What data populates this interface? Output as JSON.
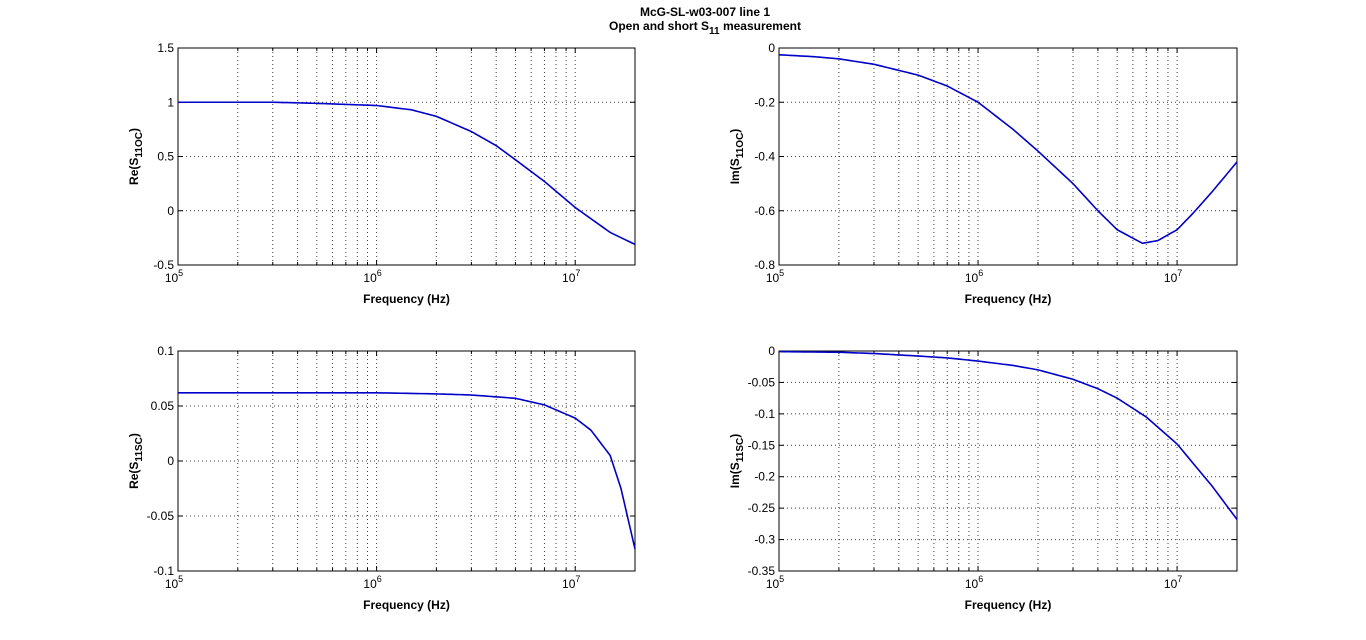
{
  "figure": {
    "title_line1": "McG-SL-w03-007 line 1",
    "title_line2_prefix": "Open and short S",
    "title_line2_sub": "11",
    "title_line2_suffix": " measurement"
  },
  "colors": {
    "line": "#0000c8",
    "axis": "#000000",
    "background": "#ffffff"
  },
  "chart_data": [
    {
      "type": "line",
      "xlabel": "Frequency (Hz)",
      "ylabel_prefix": "Re(S",
      "ylabel_sub": "11OC",
      "ylabel_suffix": ")",
      "xscale": "log",
      "xlim": [
        100000,
        20000000
      ],
      "ylim": [
        -0.5,
        1.5
      ],
      "xticks": [
        {
          "base": "10",
          "exp": "5",
          "value": 100000
        },
        {
          "base": "10",
          "exp": "6",
          "value": 1000000
        },
        {
          "base": "10",
          "exp": "7",
          "value": 10000000
        }
      ],
      "yticks": [
        {
          "value": -0.5,
          "label": "-0.5"
        },
        {
          "value": 0,
          "label": "0"
        },
        {
          "value": 0.5,
          "label": "0.5"
        },
        {
          "value": 1,
          "label": "1"
        },
        {
          "value": 1.5,
          "label": "1.5"
        }
      ],
      "grid": true,
      "series": [
        {
          "x": [
            100000,
            200000,
            300000,
            500000,
            700000,
            1000000,
            1500000,
            2000000,
            3000000,
            4000000,
            5000000,
            7000000,
            10000000,
            15000000,
            20000000
          ],
          "y": [
            1.0,
            1.0,
            1.0,
            0.99,
            0.98,
            0.97,
            0.93,
            0.87,
            0.73,
            0.6,
            0.47,
            0.27,
            0.03,
            -0.2,
            -0.31
          ]
        }
      ]
    },
    {
      "type": "line",
      "xlabel": "Frequency (Hz)",
      "ylabel_prefix": "Im(S",
      "ylabel_sub": "11OC",
      "ylabel_suffix": ")",
      "xscale": "log",
      "xlim": [
        100000,
        20000000
      ],
      "ylim": [
        -0.8,
        0
      ],
      "xticks": [
        {
          "base": "10",
          "exp": "5",
          "value": 100000
        },
        {
          "base": "10",
          "exp": "6",
          "value": 1000000
        },
        {
          "base": "10",
          "exp": "7",
          "value": 10000000
        }
      ],
      "yticks": [
        {
          "value": -0.8,
          "label": "-0.8"
        },
        {
          "value": -0.6,
          "label": "-0.6"
        },
        {
          "value": -0.4,
          "label": "-0.4"
        },
        {
          "value": -0.2,
          "label": "-0.2"
        },
        {
          "value": 0,
          "label": "0"
        }
      ],
      "grid": true,
      "series": [
        {
          "x": [
            100000,
            150000,
            200000,
            300000,
            500000,
            700000,
            1000000,
            1500000,
            2000000,
            3000000,
            4000000,
            5000000,
            6700000,
            8000000,
            10000000,
            12000000,
            15000000,
            20000000
          ],
          "y": [
            -0.025,
            -0.032,
            -0.04,
            -0.06,
            -0.1,
            -0.14,
            -0.2,
            -0.3,
            -0.38,
            -0.5,
            -0.6,
            -0.67,
            -0.72,
            -0.71,
            -0.67,
            -0.61,
            -0.53,
            -0.42
          ]
        }
      ]
    },
    {
      "type": "line",
      "xlabel": "Frequency (Hz)",
      "ylabel_prefix": "Re(S",
      "ylabel_sub": "11SC",
      "ylabel_suffix": ")",
      "xscale": "log",
      "xlim": [
        100000,
        20000000
      ],
      "ylim": [
        -0.1,
        0.1
      ],
      "xticks": [
        {
          "base": "10",
          "exp": "5",
          "value": 100000
        },
        {
          "base": "10",
          "exp": "6",
          "value": 1000000
        },
        {
          "base": "10",
          "exp": "7",
          "value": 10000000
        }
      ],
      "yticks": [
        {
          "value": -0.1,
          "label": "-0.1"
        },
        {
          "value": -0.05,
          "label": "-0.05"
        },
        {
          "value": 0,
          "label": "0"
        },
        {
          "value": 0.05,
          "label": "0.05"
        },
        {
          "value": 0.1,
          "label": "0.1"
        }
      ],
      "grid": true,
      "series": [
        {
          "x": [
            100000,
            300000,
            1000000,
            2000000,
            3000000,
            5000000,
            7000000,
            10000000,
            12000000,
            15000000,
            17000000,
            20000000
          ],
          "y": [
            0.062,
            0.062,
            0.062,
            0.061,
            0.06,
            0.057,
            0.051,
            0.039,
            0.028,
            0.005,
            -0.025,
            -0.08
          ]
        }
      ]
    },
    {
      "type": "line",
      "xlabel": "Frequency (Hz)",
      "ylabel_prefix": "Im(S",
      "ylabel_sub": "11SC",
      "ylabel_suffix": ")",
      "xscale": "log",
      "xlim": [
        100000,
        20000000
      ],
      "ylim": [
        -0.35,
        0
      ],
      "xticks": [
        {
          "base": "10",
          "exp": "5",
          "value": 100000
        },
        {
          "base": "10",
          "exp": "6",
          "value": 1000000
        },
        {
          "base": "10",
          "exp": "7",
          "value": 10000000
        }
      ],
      "yticks": [
        {
          "value": -0.35,
          "label": "-0.35"
        },
        {
          "value": -0.3,
          "label": "-0.3"
        },
        {
          "value": -0.25,
          "label": "-0.25"
        },
        {
          "value": -0.2,
          "label": "-0.2"
        },
        {
          "value": -0.15,
          "label": "-0.15"
        },
        {
          "value": -0.1,
          "label": "-0.1"
        },
        {
          "value": -0.05,
          "label": "-0.05"
        },
        {
          "value": 0,
          "label": "0"
        }
      ],
      "grid": true,
      "series": [
        {
          "x": [
            100000,
            200000,
            300000,
            500000,
            700000,
            1000000,
            1500000,
            2000000,
            3000000,
            4000000,
            5000000,
            7000000,
            10000000,
            15000000,
            20000000
          ],
          "y": [
            -0.001,
            -0.002,
            -0.004,
            -0.008,
            -0.011,
            -0.016,
            -0.023,
            -0.03,
            -0.045,
            -0.06,
            -0.075,
            -0.105,
            -0.148,
            -0.215,
            -0.268
          ]
        }
      ]
    }
  ]
}
